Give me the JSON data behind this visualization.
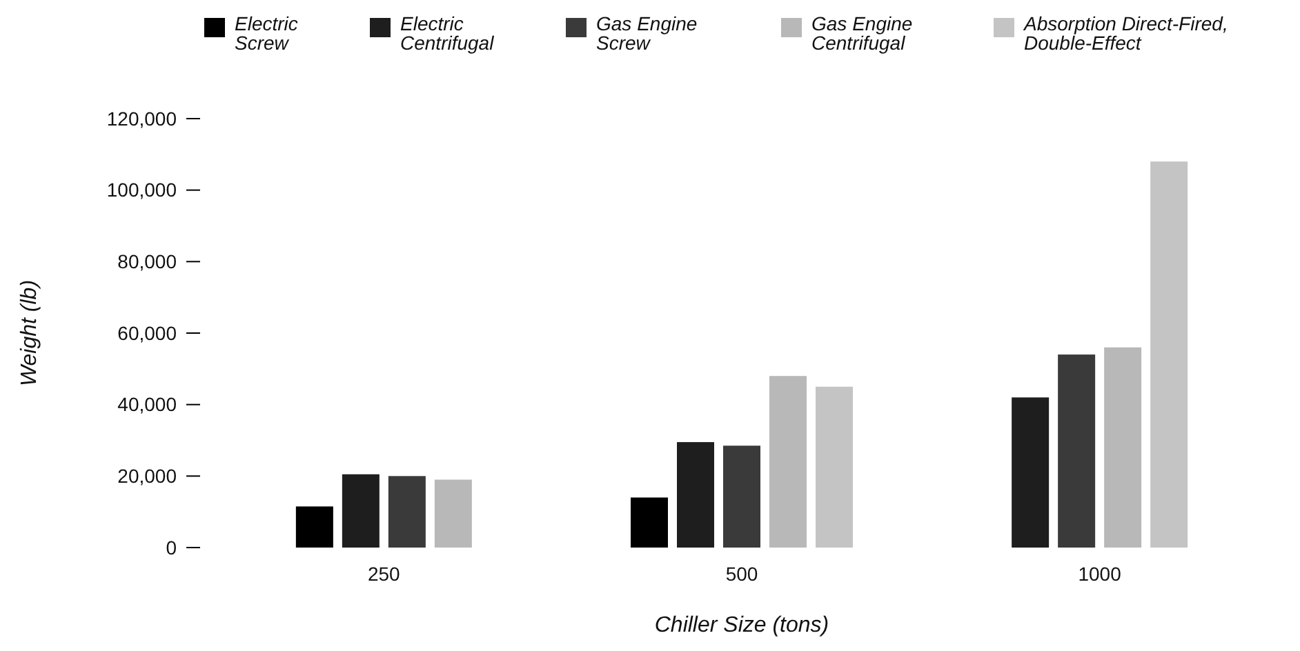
{
  "chart_data": {
    "type": "bar",
    "xlabel": "Chiller Size (tons)",
    "ylabel": "Weight (lb)",
    "categories": [
      "250",
      "500",
      "1000"
    ],
    "series": [
      {
        "name": "Electric\nScrew",
        "color": "#000000",
        "values": [
          11500,
          14000,
          null
        ]
      },
      {
        "name": "Electric\nCentrifugal",
        "color": "#1e1e1e",
        "values": [
          20500,
          29500,
          42000
        ]
      },
      {
        "name": "Gas Engine\nScrew",
        "color": "#3a3a3a",
        "values": [
          20000,
          28500,
          54000
        ]
      },
      {
        "name": "Gas Engine\nCentrifugal",
        "color": "#b8b8b8",
        "values": [
          19000,
          48000,
          56000
        ]
      },
      {
        "name": "Absorption Direct-Fired,\nDouble-Effect",
        "color": "#c4c4c4",
        "values": [
          null,
          45000,
          108000
        ]
      }
    ],
    "ylim": [
      0,
      120000
    ],
    "yticks": [
      {
        "value": 0,
        "label": "0"
      },
      {
        "value": 20000,
        "label": "20,000"
      },
      {
        "value": 40000,
        "label": "40,000"
      },
      {
        "value": 60000,
        "label": "60,000"
      },
      {
        "value": 80000,
        "label": "80,000"
      },
      {
        "value": 100000,
        "label": "100,000"
      },
      {
        "value": 120000,
        "label": "120,000"
      }
    ],
    "grid": false,
    "legend": "top"
  }
}
